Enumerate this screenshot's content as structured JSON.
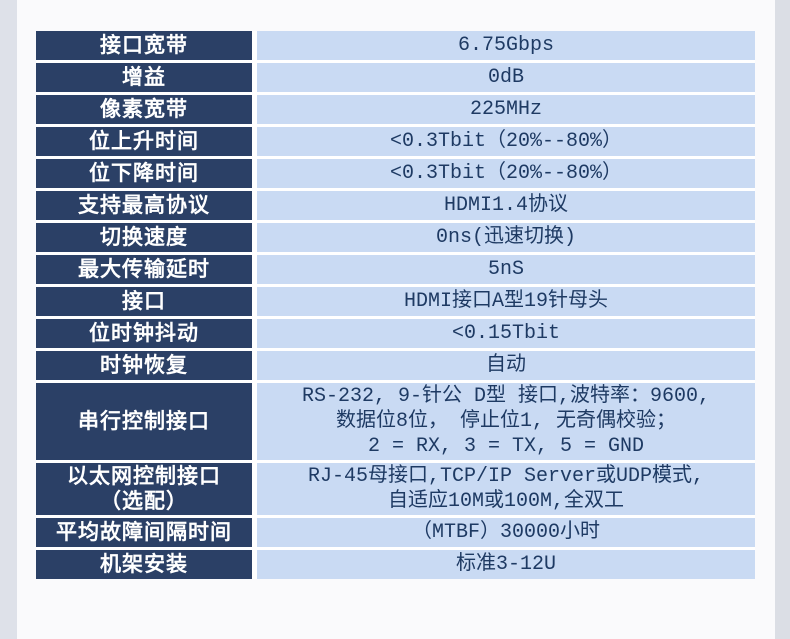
{
  "page": {
    "colors": {
      "page_bg": "#FAFAFC",
      "strip_left": "#DEE1E9",
      "strip_right": "#DBDEE5"
    }
  },
  "table": {
    "colors": {
      "label_bg": "#2B4066",
      "label_fg": "#FFFFFF",
      "value_bg": "#C9DAF3",
      "value_fg": "#1E3A63"
    },
    "rows": [
      {
        "label": [
          "接口宽带"
        ],
        "value": [
          "6.75Gbps"
        ]
      },
      {
        "label": [
          "增益"
        ],
        "value": [
          "0dB"
        ]
      },
      {
        "label": [
          "像素宽带"
        ],
        "value": [
          "225MHz"
        ]
      },
      {
        "label": [
          "位上升时间"
        ],
        "value": [
          "<0.3Tbit（20%--80%）"
        ]
      },
      {
        "label": [
          "位下降时间"
        ],
        "value": [
          "<0.3Tbit（20%--80%）"
        ]
      },
      {
        "label": [
          "支持最高协议"
        ],
        "value": [
          "HDMI1.4协议"
        ]
      },
      {
        "label": [
          "切换速度"
        ],
        "value": [
          "0ns(迅速切换)"
        ]
      },
      {
        "label": [
          "最大传输延时"
        ],
        "value": [
          "5nS"
        ]
      },
      {
        "label": [
          "接口"
        ],
        "value": [
          "HDMI接口A型19针母头"
        ]
      },
      {
        "label": [
          "位时钟抖动"
        ],
        "value": [
          "<0.15Tbit"
        ]
      },
      {
        "label": [
          "时钟恢复"
        ],
        "value": [
          "自动"
        ]
      },
      {
        "label": [
          "串行控制接口"
        ],
        "value": [
          "RS-232, 9-针公 D型 接口,波特率：9600,",
          "数据位8位， 停止位1, 无奇偶校验；",
          "2 = RX, 3 = TX, 5 = GND"
        ]
      },
      {
        "label": [
          "以太网控制接口",
          "（选配）"
        ],
        "value": [
          "RJ-45母接口,TCP/IP Server或UDP模式,",
          "自适应10M或100M,全双工"
        ]
      },
      {
        "label": [
          "平均故障间隔时间"
        ],
        "value": [
          "（MTBF）30000小时"
        ]
      },
      {
        "label": [
          "机架安装"
        ],
        "value": [
          "标准3-12U"
        ]
      }
    ]
  }
}
